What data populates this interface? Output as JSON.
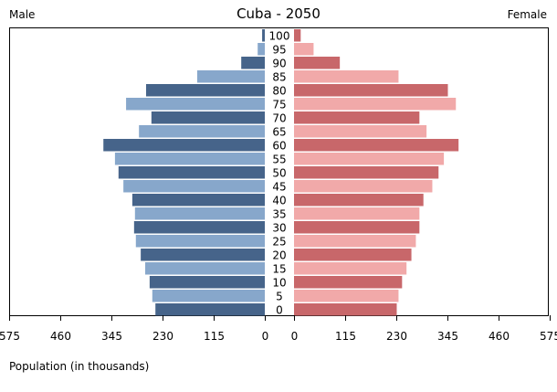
{
  "chart_data": {
    "type": "bar",
    "orientation": "horizontal-pyramid",
    "title": "Cuba - 2050",
    "left_label": "Male",
    "right_label": "Female",
    "xlabel": "Population (in thousands)",
    "xlim": [
      0,
      575
    ],
    "xticks": [
      575,
      460,
      345,
      230,
      115,
      0
    ],
    "grid": false,
    "categories": [
      "100",
      "95",
      "90",
      "85",
      "80",
      "75",
      "70",
      "65",
      "60",
      "55",
      "50",
      "45",
      "40",
      "35",
      "30",
      "25",
      "20",
      "15",
      "10",
      "5",
      "0"
    ],
    "series": [
      {
        "name": "Male",
        "values": [
          6,
          16,
          53,
          152,
          267,
          312,
          255,
          283,
          363,
          337,
          329,
          318,
          298,
          292,
          294,
          290,
          279,
          269,
          259,
          253,
          246
        ],
        "colors": [
          "#46648a",
          "#87a7cb"
        ]
      },
      {
        "name": "Female",
        "values": [
          15,
          44,
          103,
          235,
          346,
          364,
          282,
          298,
          370,
          337,
          325,
          311,
          291,
          282,
          282,
          274,
          264,
          253,
          243,
          235,
          231
        ],
        "colors": [
          "#c8676a",
          "#f1a9a9"
        ]
      }
    ]
  }
}
